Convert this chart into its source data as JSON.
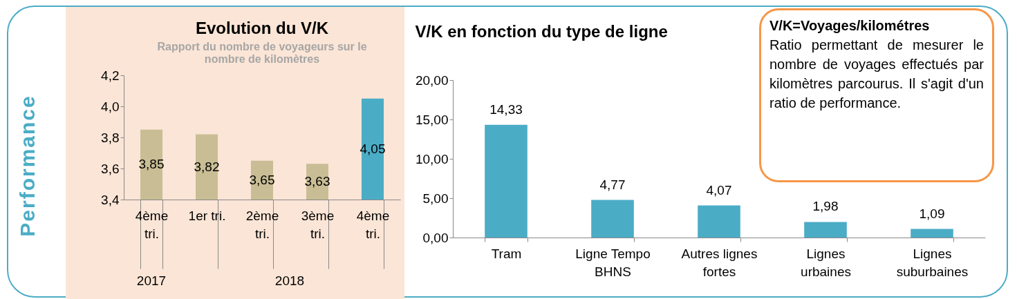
{
  "chart_data": [
    {
      "type": "bar",
      "title": "Evolution du V/K",
      "subtitle": "Rapport du nombre de voyageurs sur le nombre de kilomètres",
      "categories": [
        "4ème tri.",
        "1er tri.",
        "2ème tri.",
        "3ème tri.",
        "4ème tri."
      ],
      "values": [
        3.85,
        3.82,
        3.65,
        3.63,
        4.05
      ],
      "value_labels": [
        "3,85",
        "3,82",
        "3,65",
        "3,63",
        "4,05"
      ],
      "colors": [
        "#c9bd95",
        "#c9bd95",
        "#c9bd95",
        "#c9bd95",
        "#4bacc6"
      ],
      "ylim": [
        3.4,
        4.2
      ],
      "yticks": [
        {
          "value": 3.4,
          "label": "3,4"
        },
        {
          "value": 3.6,
          "label": "3,6"
        },
        {
          "value": 3.8,
          "label": "3,8"
        },
        {
          "value": 4.0,
          "label": "4,0"
        },
        {
          "value": 4.2,
          "label": "4,2"
        }
      ],
      "annotations": [
        "2017",
        "2018",
        "Performance"
      ]
    },
    {
      "type": "bar",
      "title": "V/K en fonction du type de ligne",
      "categories": [
        "Tram",
        "Ligne Tempo BHNS",
        "Autres lignes fortes",
        "Lignes urbaines",
        "Lignes suburbaines"
      ],
      "values": [
        14.33,
        4.77,
        4.07,
        1.98,
        1.09
      ],
      "value_labels": [
        "14,33",
        "4,77",
        "4,07",
        "1,98",
        "1,09"
      ],
      "color": "#4bacc6",
      "ylim": [
        0,
        20
      ],
      "yticks": [
        {
          "value": 0,
          "label": "0,00"
        },
        {
          "value": 5,
          "label": "5,00"
        },
        {
          "value": 10,
          "label": "10,00"
        },
        {
          "value": 15,
          "label": "15,00"
        },
        {
          "value": 20,
          "label": "20,00"
        }
      ]
    },
    {
      "type": "other",
      "title": "V/K=Voyages/kilométres",
      "annotations": [
        "Ratio permettant de mesurer le nombre de voyages effectués par kilomètres parcourus. Il s'agit d'un ratio de performance."
      ]
    }
  ]
}
